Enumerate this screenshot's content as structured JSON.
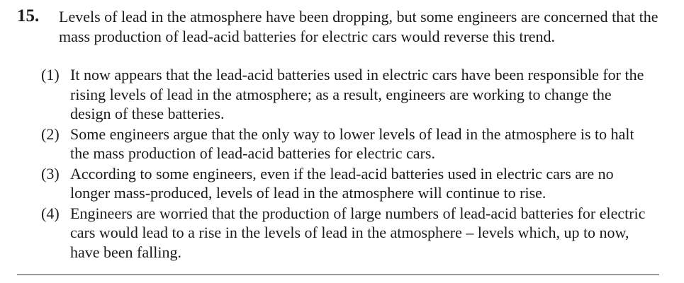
{
  "question": {
    "number": "15.",
    "stem": "Levels of lead in the atmosphere have been dropping, but some engineers are concerned that the mass production of lead-acid batteries for electric cars would reverse this trend.",
    "options": [
      {
        "label": "(1)",
        "text": "It now appears that the lead-acid batteries used in electric cars have been responsible for the rising levels of lead in the atmosphere; as a result, engineers are working to change the design of these batteries."
      },
      {
        "label": "(2)",
        "text": "Some engineers argue that the only way to lower levels of lead in the atmosphere is to halt the mass production of lead-acid batteries for electric cars."
      },
      {
        "label": "(3)",
        "text": "According to some engineers, even if the lead-acid batteries used in electric cars are no longer mass-produced, levels of lead in the atmosphere will continue to rise."
      },
      {
        "label": "(4)",
        "text": "Engineers are worried that the production of large numbers of lead-acid batteries for electric cars would lead to a rise in the levels of lead in the atmosphere – levels which, up to now, have been falling."
      }
    ]
  }
}
